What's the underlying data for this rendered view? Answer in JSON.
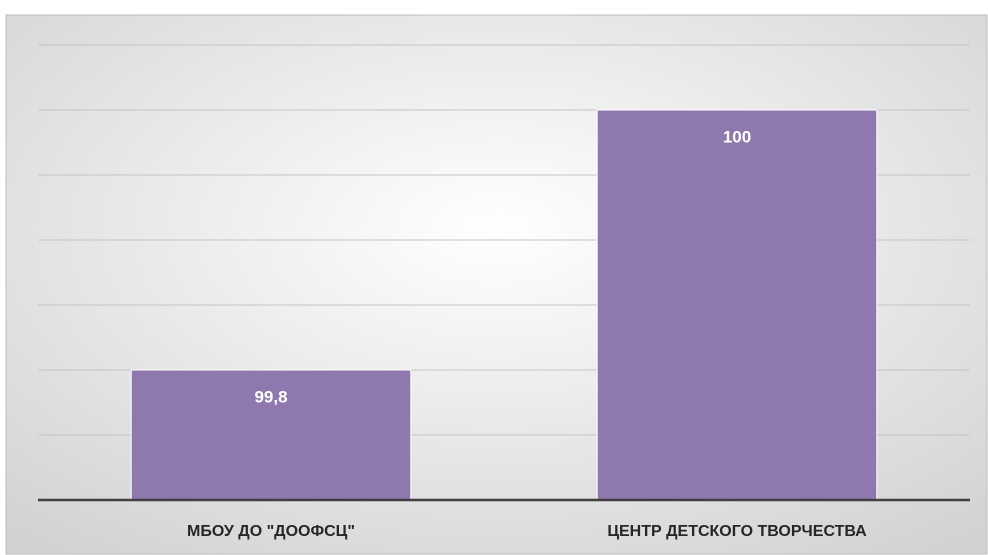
{
  "chart_data": {
    "type": "bar",
    "categories": [
      "МБОУ ДО \"ДООФСЦ\"",
      "ЦЕНТР ДЕТСКОГО ТВОРЧЕСТВА"
    ],
    "values": [
      99.8,
      100
    ],
    "value_labels": [
      "99,8",
      "100"
    ],
    "color": "#8e78ae",
    "ylim": [
      99.7,
      100.05
    ],
    "yticks": [
      99.7,
      99.75,
      99.8,
      99.85,
      99.9,
      99.95,
      100,
      100.05
    ],
    "grid": true
  }
}
